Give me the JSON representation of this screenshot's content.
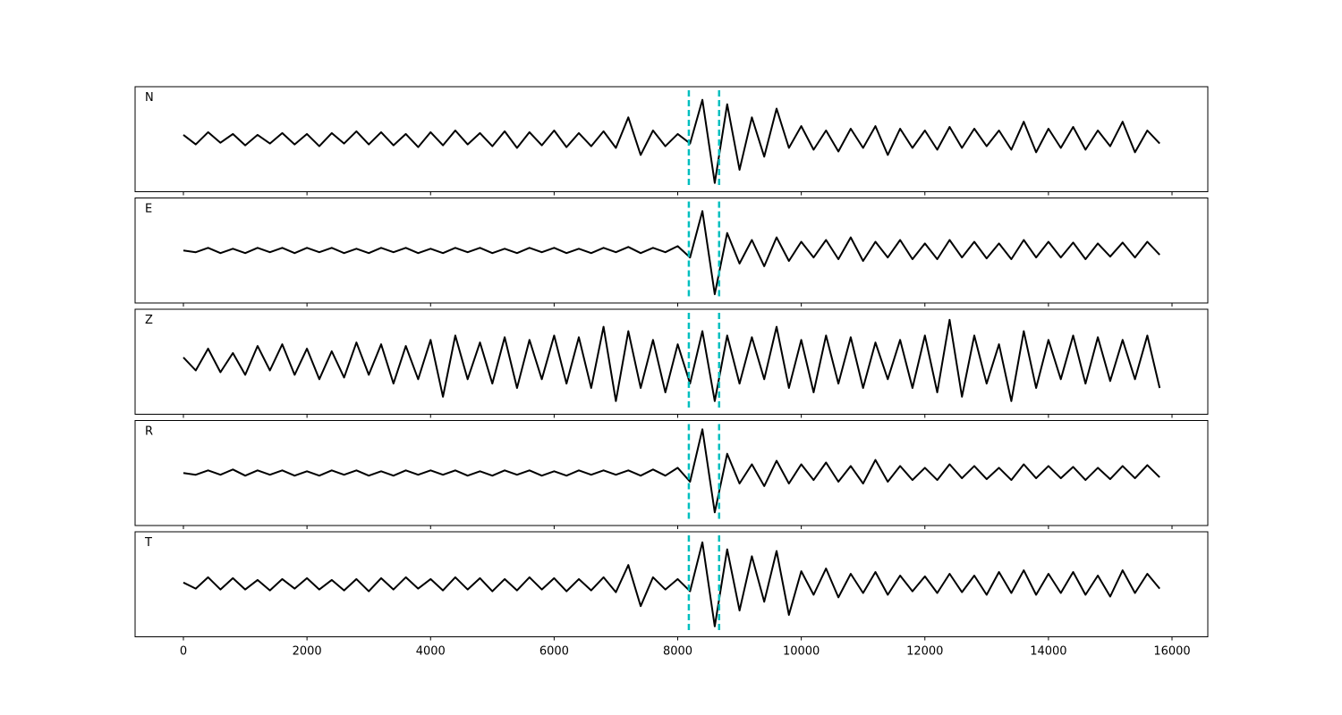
{
  "chart_data": {
    "type": "line",
    "x": [
      0,
      200,
      400,
      600,
      800,
      1000,
      1200,
      1400,
      1600,
      1800,
      2000,
      2200,
      2400,
      2600,
      2800,
      3000,
      3200,
      3400,
      3600,
      3800,
      4000,
      4200,
      4400,
      4600,
      4800,
      5000,
      5200,
      5400,
      5600,
      5800,
      6000,
      6200,
      6400,
      6600,
      6800,
      7000,
      7200,
      7400,
      7600,
      7800,
      8000,
      8200,
      8400,
      8600,
      8800,
      9000,
      9200,
      9400,
      9600,
      9800,
      10000,
      10200,
      10400,
      10600,
      10800,
      11000,
      11200,
      11400,
      11600,
      11800,
      12000,
      12200,
      12400,
      12600,
      12800,
      13000,
      13200,
      13400,
      13600,
      13800,
      14000,
      14200,
      14400,
      14600,
      14800,
      15000,
      15200,
      15400,
      15600,
      15800
    ],
    "series": [
      {
        "name": "N",
        "color": "#000000",
        "values": [
          5,
          -6,
          8,
          -4,
          6,
          -7,
          5,
          -5,
          7,
          -6,
          6,
          -8,
          7,
          -5,
          9,
          -6,
          8,
          -7,
          6,
          -9,
          8,
          -7,
          10,
          -6,
          7,
          -8,
          9,
          -10,
          8,
          -7,
          10,
          -9,
          7,
          -8,
          9,
          -10,
          25,
          -18,
          10,
          -8,
          6,
          -5,
          45,
          -50,
          40,
          -35,
          25,
          -20,
          35,
          -10,
          15,
          -12,
          10,
          -14,
          12,
          -10,
          15,
          -18,
          12,
          -10,
          10,
          -12,
          14,
          -10,
          12,
          -8,
          10,
          -12,
          20,
          -15,
          12,
          -10,
          14,
          -12,
          10,
          -8,
          20,
          -15,
          10,
          -5
        ]
      },
      {
        "name": "E",
        "color": "#000000",
        "values": [
          0,
          -2,
          3,
          -3,
          2,
          -3,
          3,
          -2,
          3,
          -3,
          3,
          -2,
          3,
          -3,
          2,
          -3,
          3,
          -2,
          3,
          -3,
          2,
          -3,
          3,
          -2,
          3,
          -3,
          2,
          -3,
          3,
          -2,
          3,
          -3,
          2,
          -3,
          3,
          -2,
          4,
          -3,
          3,
          -2,
          5,
          -8,
          45,
          -50,
          20,
          -15,
          12,
          -18,
          15,
          -12,
          10,
          -8,
          12,
          -10,
          15,
          -12,
          10,
          -8,
          12,
          -10,
          8,
          -10,
          12,
          -8,
          10,
          -9,
          8,
          -10,
          12,
          -8,
          10,
          -8,
          9,
          -10,
          8,
          -7,
          9,
          -8,
          10,
          -5
        ]
      },
      {
        "name": "Z",
        "color": "#000000",
        "values": [
          5,
          -10,
          15,
          -12,
          10,
          -15,
          18,
          -10,
          20,
          -15,
          15,
          -20,
          12,
          -18,
          22,
          -15,
          20,
          -25,
          18,
          -20,
          25,
          -40,
          30,
          -20,
          22,
          -25,
          28,
          -30,
          25,
          -20,
          30,
          -25,
          28,
          -30,
          40,
          -45,
          35,
          -30,
          25,
          -35,
          20,
          -25,
          35,
          -45,
          30,
          -25,
          28,
          -20,
          40,
          -30,
          25,
          -35,
          30,
          -25,
          28,
          -30,
          22,
          -20,
          25,
          -30,
          30,
          -35,
          48,
          -40,
          30,
          -25,
          20,
          -45,
          35,
          -30,
          25,
          -20,
          30,
          -25,
          28,
          -22,
          25,
          -20,
          30,
          -30
        ]
      },
      {
        "name": "R",
        "color": "#000000",
        "values": [
          0,
          -2,
          3,
          -2,
          4,
          -3,
          3,
          -2,
          3,
          -3,
          2,
          -3,
          3,
          -2,
          3,
          -3,
          2,
          -3,
          3,
          -2,
          3,
          -2,
          3,
          -3,
          2,
          -3,
          3,
          -2,
          3,
          -3,
          2,
          -3,
          3,
          -2,
          3,
          -2,
          3,
          -3,
          4,
          -3,
          6,
          -10,
          50,
          -45,
          22,
          -12,
          10,
          -15,
          14,
          -12,
          10,
          -8,
          12,
          -10,
          8,
          -12,
          15,
          -10,
          8,
          -8,
          6,
          -8,
          10,
          -6,
          8,
          -7,
          6,
          -8,
          10,
          -6,
          8,
          -6,
          7,
          -8,
          6,
          -7,
          8,
          -6,
          9,
          -5
        ]
      },
      {
        "name": "T",
        "color": "#000000",
        "values": [
          2,
          -5,
          8,
          -6,
          7,
          -6,
          5,
          -7,
          6,
          -5,
          7,
          -6,
          5,
          -7,
          6,
          -8,
          7,
          -6,
          8,
          -5,
          6,
          -7,
          8,
          -6,
          7,
          -8,
          6,
          -7,
          8,
          -6,
          7,
          -8,
          6,
          -7,
          8,
          -9,
          22,
          -25,
          8,
          -6,
          6,
          -8,
          48,
          -48,
          40,
          -30,
          32,
          -20,
          38,
          -35,
          15,
          -12,
          18,
          -15,
          12,
          -10,
          14,
          -12,
          10,
          -8,
          9,
          -10,
          12,
          -9,
          10,
          -12,
          14,
          -10,
          16,
          -12,
          12,
          -10,
          14,
          -12,
          10,
          -14,
          16,
          -10,
          12,
          -5
        ]
      }
    ],
    "vlines": [
      8180,
      8670
    ],
    "vline_color": "#00bfbf",
    "xlim": [
      -782,
      16579
    ],
    "xticks": [
      0,
      2000,
      4000,
      6000,
      8000,
      10000,
      12000,
      14000,
      16000
    ],
    "ylim": [
      -60,
      60
    ]
  }
}
